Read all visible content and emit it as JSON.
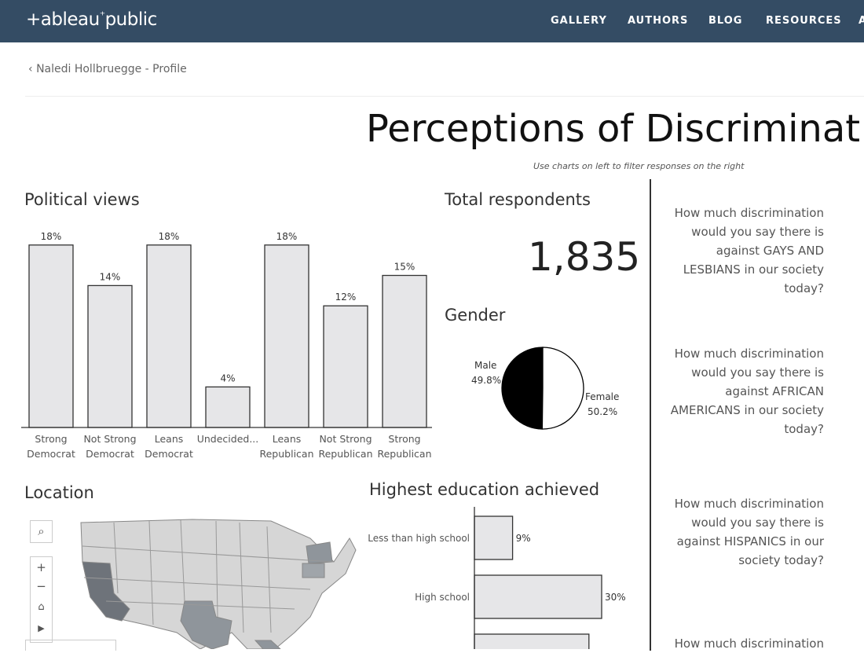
{
  "header": {
    "logo": "+ableau+public",
    "nav": [
      "GALLERY",
      "AUTHORS",
      "BLOG",
      "RESOURCES",
      "A"
    ]
  },
  "breadcrumb": "Naledi Hollbruegge - Profile",
  "title": "Perceptions of Discriminat",
  "subtitle": "Use charts on left to filter responses on the right",
  "political": {
    "heading": "Political views"
  },
  "total": {
    "heading": "Total respondents",
    "value": "1,835"
  },
  "gender": {
    "heading": "Gender",
    "male_label": "Male",
    "male_value": "49.8%",
    "female_label": "Female",
    "female_value": "50.2%"
  },
  "location": {
    "heading": "Location",
    "controls": [
      "search-icon",
      "zoom-in",
      "zoom-out",
      "home-icon",
      "play-icon"
    ],
    "zoom_in": "+",
    "zoom_out": "−"
  },
  "education": {
    "heading": "Highest education achieved"
  },
  "questions": [
    "How much discrimination would you say there is against GAYS AND LESBIANS in our society today?",
    "How much discrimination would you say there is against AFRICAN AMERICANS in our society today?",
    "How much discrimination would you say there is against HISPANICS in our society today?",
    "How much discrimination"
  ],
  "chart_data": [
    {
      "type": "bar",
      "categories": [
        [
          "Strong",
          "Democrat"
        ],
        [
          "Not Strong",
          "Democrat"
        ],
        [
          "Leans",
          "Democrat"
        ],
        [
          "Undecided..."
        ],
        [
          "Leans",
          "Republican"
        ],
        [
          "Not Strong",
          "Republican"
        ],
        [
          "Strong",
          "Republican"
        ]
      ],
      "values": [
        18,
        14,
        18,
        4,
        18,
        12,
        15
      ],
      "labels": [
        "18%",
        "14%",
        "18%",
        "4%",
        "18%",
        "12%",
        "15%"
      ]
    },
    {
      "type": "pie",
      "categories": [
        "Male",
        "Female"
      ],
      "values": [
        49.8,
        50.2
      ],
      "colors": [
        "#000000",
        "#ffffff"
      ]
    },
    {
      "type": "bar",
      "orientation": "horizontal",
      "categories": [
        "Less than high school",
        "High school",
        ""
      ],
      "values": [
        9,
        30,
        27
      ],
      "labels": [
        "9%",
        "30%",
        ""
      ]
    }
  ]
}
